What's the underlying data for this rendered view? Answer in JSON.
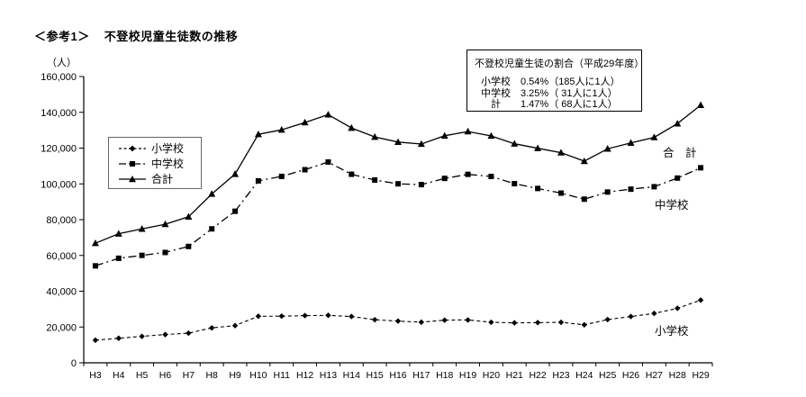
{
  "header": {
    "ref_label": "＜参考1＞",
    "title": "不登校児童生徒数の推移"
  },
  "ratio_box": {
    "title": "不登校児童生徒の割合（平成29年度）",
    "rows": [
      "小学校　0.54%（185人に1人）",
      "中学校　3.25%（ 31人に1人）",
      "　計　　1.47%（ 68人に1人）"
    ]
  },
  "chart_data": {
    "type": "line",
    "title": "不登校児童生徒数の推移",
    "unit_label": "（人）",
    "xlabel": "",
    "ylabel": "人",
    "ylim": [
      0,
      160000
    ],
    "ytick_step": 20000,
    "grid": false,
    "legend_position": "upper-left-inside",
    "colors": {
      "line": "#000000",
      "background": "#ffffff"
    },
    "categories": [
      "H3",
      "H4",
      "H5",
      "H6",
      "H7",
      "H8",
      "H9",
      "H10",
      "H11",
      "H12",
      "H13",
      "H14",
      "H15",
      "H16",
      "H17",
      "H18",
      "H19",
      "H20",
      "H21",
      "H22",
      "H23",
      "H24",
      "H25",
      "H26",
      "H27",
      "H28",
      "H29"
    ],
    "series": [
      {
        "key": "elementary",
        "name": "小学校",
        "marker": "diamond",
        "line_style": "dashed",
        "values": [
          12645,
          13710,
          14769,
          15786,
          16569,
          19498,
          20765,
          26017,
          26047,
          26373,
          26511,
          25869,
          24077,
          23318,
          22709,
          23825,
          23927,
          22652,
          22327,
          22463,
          22622,
          21243,
          24175,
          25864,
          27583,
          30448,
          35032
        ]
      },
      {
        "key": "junior-high",
        "name": "中学校",
        "marker": "square",
        "line_style": "dashdot",
        "values": [
          54172,
          58421,
          60039,
          61663,
          65022,
          74853,
          84701,
          101675,
          104180,
          107913,
          112211,
          105383,
          102149,
          100040,
          99578,
          103069,
          105328,
          104153,
          100105,
          97428,
          94836,
          91446,
          95442,
          97033,
          98408,
          103235,
          108999
        ]
      },
      {
        "key": "total",
        "name": "合計",
        "marker": "triangle",
        "line_style": "solid",
        "values": [
          66817,
          72131,
          74808,
          77449,
          81591,
          94351,
          105466,
          127692,
          130227,
          134286,
          138722,
          131252,
          126226,
          123358,
          122287,
          126894,
          129255,
          126805,
          122432,
          119891,
          117458,
          112689,
          119617,
          122897,
          125991,
          133683,
          144031
        ]
      }
    ],
    "annotations": [
      {
        "key": "total",
        "text": "合　計",
        "x": 736,
        "y": 170
      },
      {
        "key": "junior-high",
        "text": "中学校",
        "x": 727,
        "y": 228
      },
      {
        "key": "elementary",
        "text": "小学校",
        "x": 727,
        "y": 368
      }
    ]
  }
}
